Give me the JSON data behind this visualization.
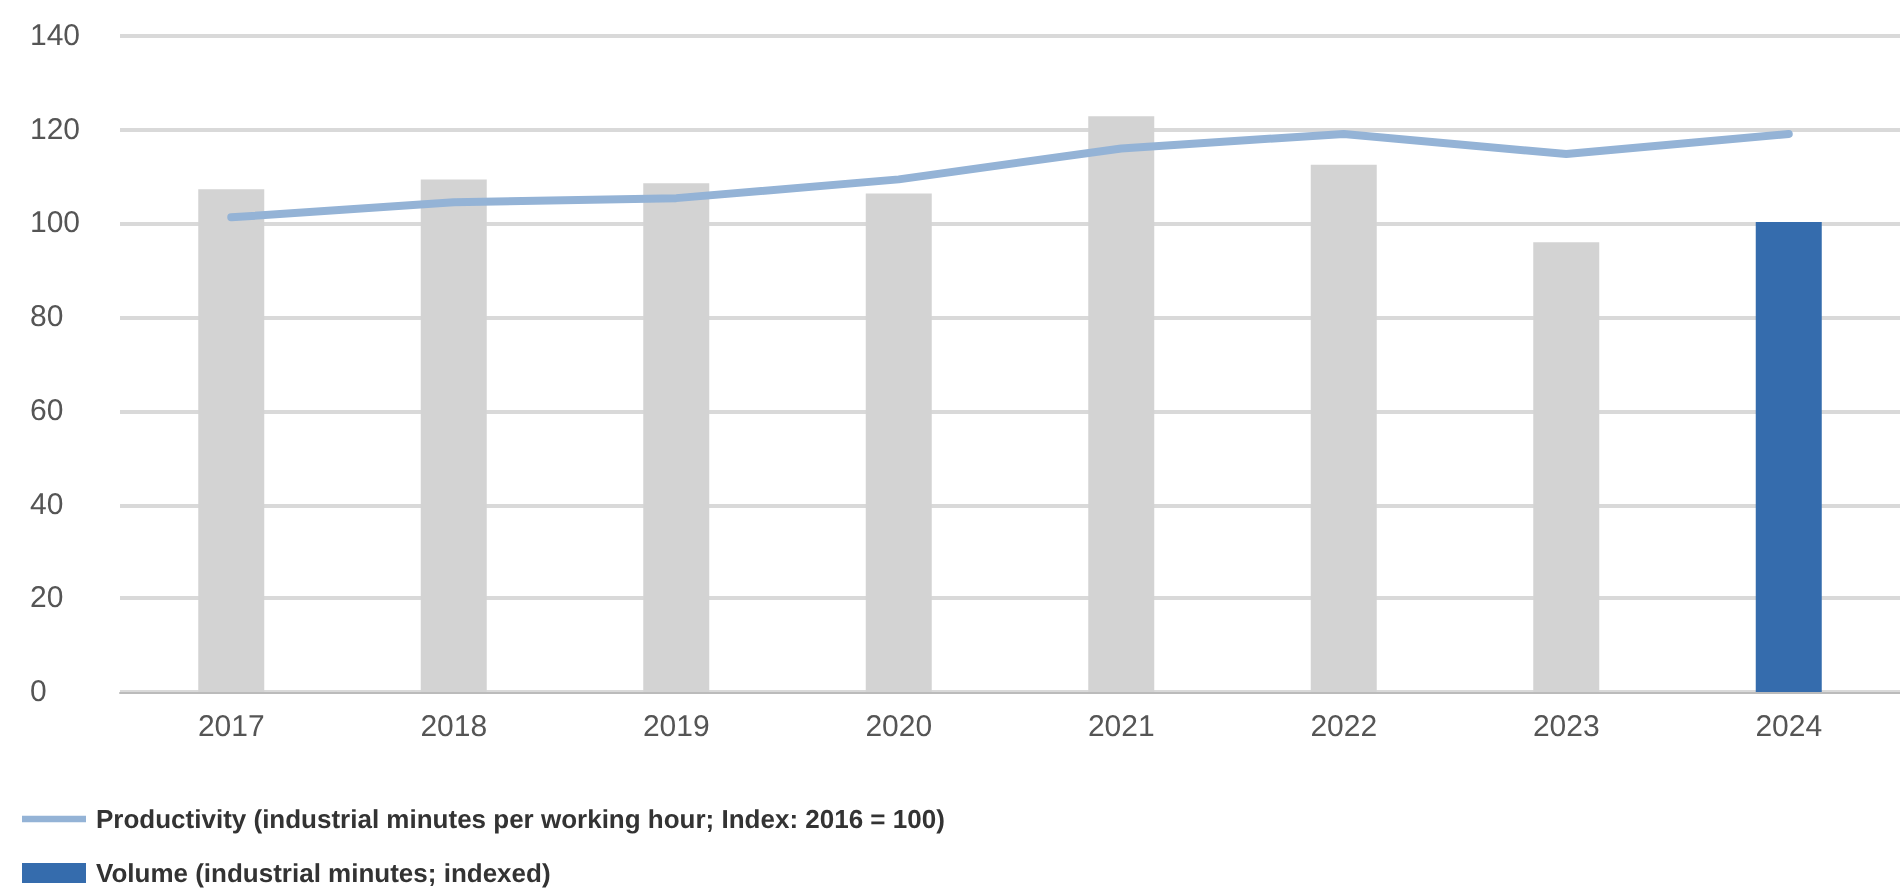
{
  "chart_data": {
    "type": "bar",
    "categories": [
      "2017",
      "2018",
      "2019",
      "2020",
      "2021",
      "2022",
      "2023",
      "2024"
    ],
    "series": [
      {
        "name": "Productivity (industrial minutes per working hour; Index: 2016 = 100)",
        "type": "line",
        "color": "#94b3d6",
        "values": [
          101.3,
          104.5,
          105.4,
          109.4,
          116,
          119.1,
          114.8,
          119.1
        ]
      },
      {
        "name": "Volume (industrial minutes; indexed)",
        "color": "#356cad",
        "colors": [
          "#d3d3d3",
          "#d3d3d3",
          "#d3d3d3",
          "#d3d3d3",
          "#d3d3d3",
          "#d3d3d3",
          "#d3d3d3",
          "#356cad"
        ],
        "values": [
          107.3,
          109.4,
          108.6,
          106.4,
          122.9,
          112.5,
          96,
          100.3
        ]
      }
    ],
    "ylim": [
      0,
      140
    ],
    "yticks": [
      0,
      20,
      40,
      60,
      80,
      100,
      120,
      140
    ],
    "grid": "y",
    "legend": "bottom left",
    "marker": "none",
    "line_style": "solid"
  }
}
